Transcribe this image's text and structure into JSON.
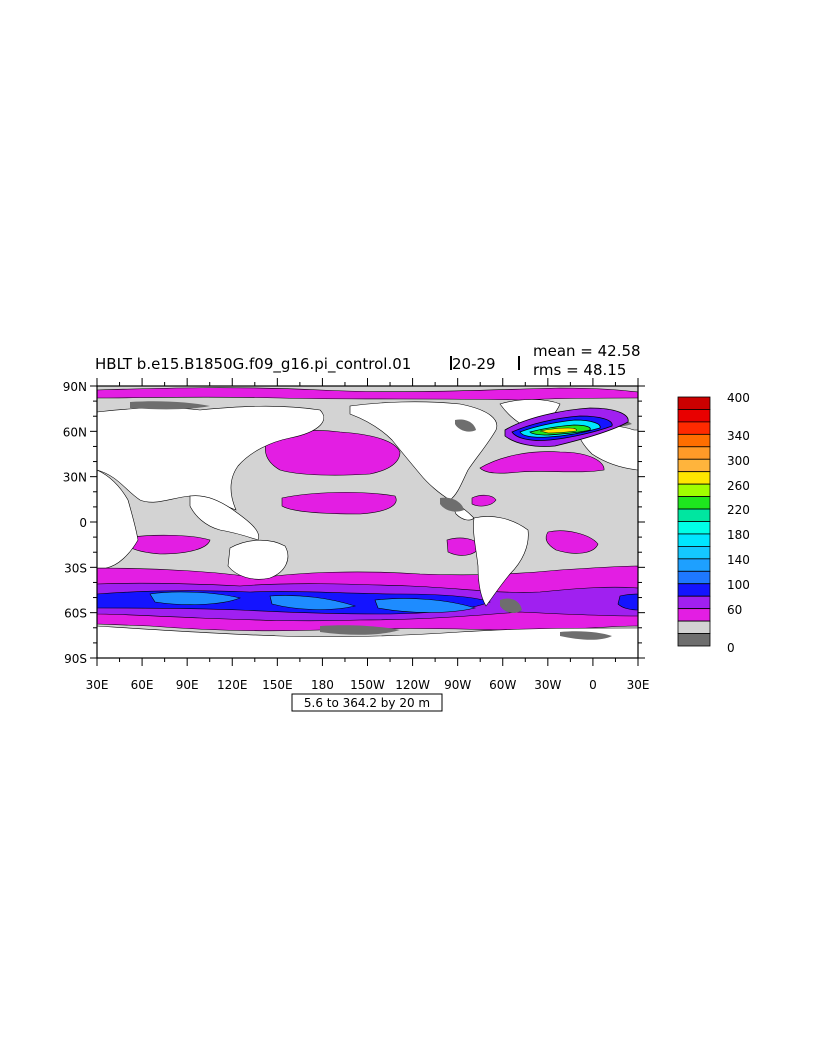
{
  "title": {
    "main": "HBLT b.e15.B1850G.f09_g16.pi_control.01",
    "years": "20-29",
    "mean": "mean = 42.58",
    "rms": "rms = 48.15"
  },
  "contour_info": "5.6 to 364.2 by 20 m",
  "map": {
    "lat_ticks": [
      "90N",
      "60N",
      "30N",
      "0",
      "30S",
      "60S",
      "90S"
    ],
    "lon_ticks": [
      "30E",
      "60E",
      "90E",
      "120E",
      "150E",
      "180",
      "150W",
      "120W",
      "90W",
      "60W",
      "30W",
      "0",
      "30E"
    ],
    "colors": {
      "land": "#ffffff",
      "ocean_base": "#d3d3d3",
      "shallow": "#6e6e6e",
      "magenta": "#e31ee3",
      "purple": "#a020f0",
      "blue": "#1414ff",
      "mid_blue": "#1e8cff",
      "light_blue": "#14b4ff"
    }
  },
  "colorbar": {
    "labels": [
      "400",
      "340",
      "300",
      "260",
      "220",
      "180",
      "140",
      "100",
      "60",
      "0"
    ],
    "bins": [
      {
        "color": "#cc0000"
      },
      {
        "color": "#e80000"
      },
      {
        "color": "#ff2a00"
      },
      {
        "color": "#ff6e00"
      },
      {
        "color": "#ff9a28"
      },
      {
        "color": "#ffb43c"
      },
      {
        "color": "#ffe600"
      },
      {
        "color": "#a0ff00"
      },
      {
        "color": "#1ee61e"
      },
      {
        "color": "#00e6a0"
      },
      {
        "color": "#00ffe6"
      },
      {
        "color": "#00e6ff"
      },
      {
        "color": "#14c8ff"
      },
      {
        "color": "#1ea0ff"
      },
      {
        "color": "#1e78ff"
      },
      {
        "color": "#1414ff"
      },
      {
        "color": "#a020f0"
      },
      {
        "color": "#e31ee3"
      },
      {
        "color": "#d3d3d3"
      },
      {
        "color": "#6e6e6e"
      }
    ]
  }
}
